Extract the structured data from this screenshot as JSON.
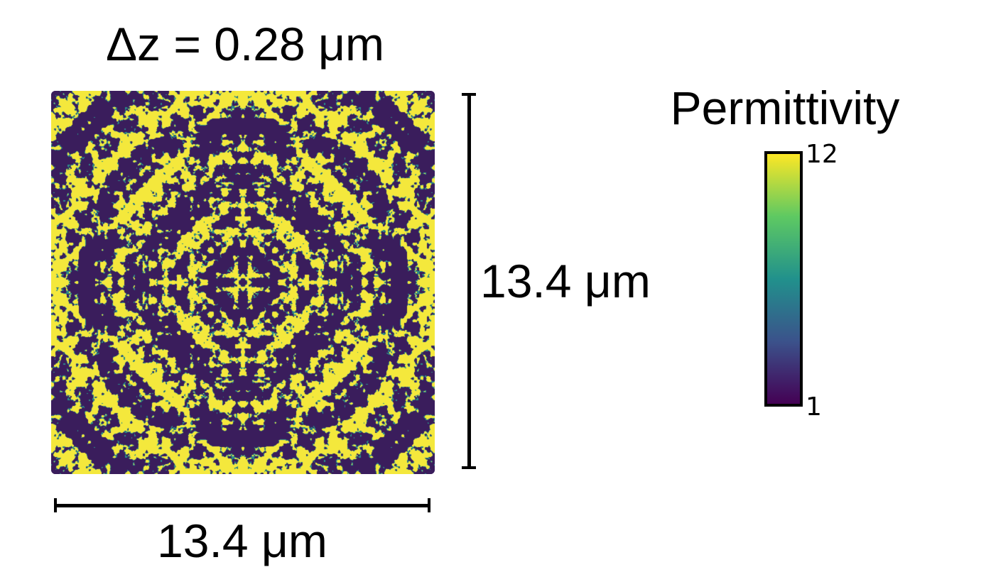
{
  "title": "Δz = 0.28 μm",
  "scale": {
    "width_label": "13.4 μm",
    "height_label": "13.4 μm"
  },
  "colorbar": {
    "title": "Permittivity",
    "max_label": "12",
    "min_label": "1"
  },
  "colors": {
    "low": "#3a1d5c",
    "mid": "#2a8c8a",
    "high": "#f4e83c"
  }
}
